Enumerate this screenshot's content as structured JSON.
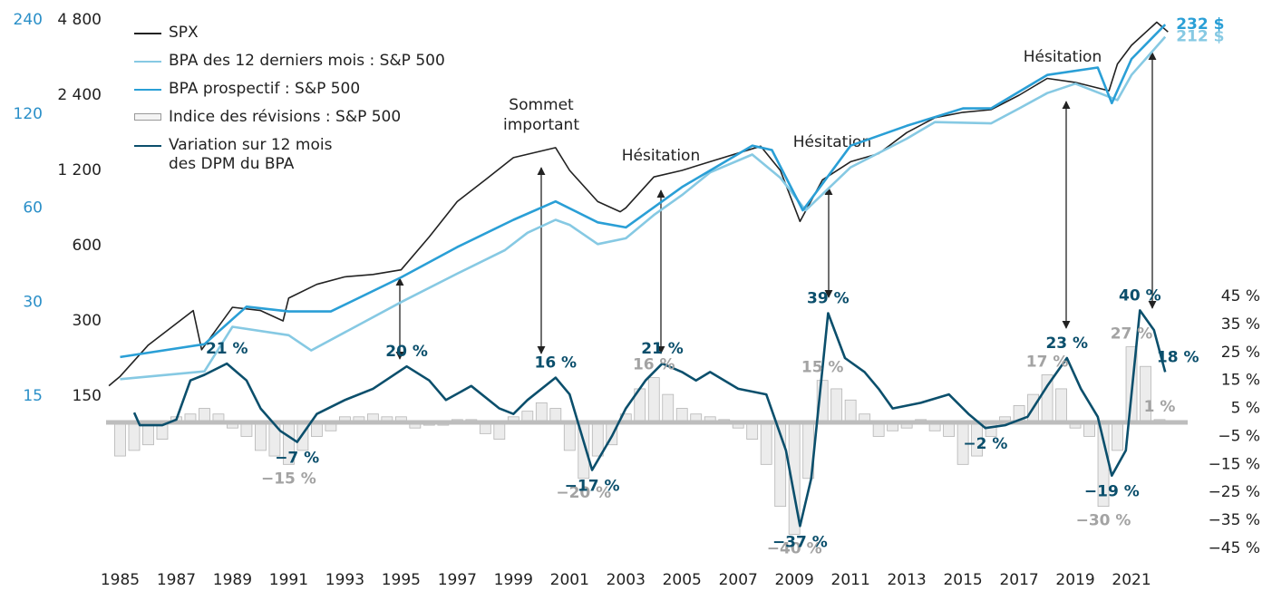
{
  "chart_data": {
    "type": "line",
    "x_axis": {
      "xlim": [
        1984.5,
        2023
      ],
      "xticks": [
        1985,
        1987,
        1989,
        1991,
        1993,
        1995,
        1997,
        1999,
        2001,
        2003,
        2005,
        2007,
        2009,
        2011,
        2013,
        2015,
        2017,
        2019,
        2021
      ]
    },
    "yscale": "log",
    "ylim": [
      150,
      4800
    ],
    "yticks": [
      150,
      300,
      600,
      {
        "value": 1200,
        "label": "1 200"
      },
      {
        "value": 2400,
        "label": "2 400"
      },
      {
        "value": 4800,
        "label": "4 800"
      }
    ],
    "y2scale": "log",
    "y2lim": [
      15,
      240
    ],
    "y2ticks": [
      15,
      30,
      60,
      120,
      240
    ],
    "y3lim": [
      -45,
      45
    ],
    "y3ticks": [
      {
        "value": 45,
        "label": "45 %"
      },
      {
        "value": 35,
        "label": "35 %"
      },
      {
        "value": 25,
        "label": "25 %"
      },
      {
        "value": 15,
        "label": "15 %"
      },
      {
        "value": 5,
        "label": "5 %"
      },
      {
        "value": -5,
        "label": "−5 %"
      },
      {
        "value": -15,
        "label": "−15 %"
      },
      {
        "value": -25,
        "label": "−25 %"
      },
      {
        "value": -35,
        "label": "−35 %"
      },
      {
        "value": -45,
        "label": "−45 %"
      }
    ],
    "series": [
      {
        "name": "SPX",
        "color": "#222222",
        "axis": "y",
        "x": [
          1984.6,
          1985,
          1986,
          1987.6,
          1987.9,
          1989,
          1990,
          1990.8,
          1991,
          1992,
          1993,
          1994,
          1995,
          1996,
          1997,
          1998,
          1999,
          2000.5,
          2001,
          2002,
          2002.8,
          2003,
          2004,
          2005,
          2006,
          2007.8,
          2008.5,
          2009.2,
          2010,
          2011,
          2012,
          2013,
          2014,
          2015,
          2016,
          2017,
          2018,
          2019,
          2020.2,
          2020.5,
          2021,
          2021.9,
          2022.3
        ],
        "values": [
          165,
          180,
          240,
          330,
          230,
          340,
          330,
          300,
          370,
          420,
          450,
          460,
          480,
          650,
          900,
          1100,
          1350,
          1480,
          1200,
          900,
          820,
          850,
          1130,
          1200,
          1300,
          1500,
          1200,
          750,
          1100,
          1300,
          1400,
          1700,
          1950,
          2050,
          2100,
          2400,
          2800,
          2700,
          2500,
          3200,
          3800,
          4700,
          4300
        ]
      },
      {
        "name": "BPA des 12 derniers mois : S&P 500",
        "color": "#86c9e3",
        "axis": "y2",
        "x": [
          1985,
          1988,
          1989,
          1991,
          1991.8,
          1995,
          1997,
          1998.7,
          1999.5,
          2000.5,
          2001,
          2002,
          2003,
          2004,
          2005,
          2006,
          2007.5,
          2008.5,
          2009.4,
          2011,
          2013,
          2014,
          2016,
          2017,
          2018,
          2019,
          2020.5,
          2021,
          2022.2
        ],
        "values": [
          17,
          18,
          25,
          23.5,
          21,
          30,
          37,
          44,
          50,
          55,
          53,
          46,
          48,
          57,
          66,
          78,
          89,
          75,
          59,
          81,
          100,
          113,
          112,
          125,
          140,
          150,
          133,
          160,
          212
        ],
        "value_labels": [
          null,
          null,
          null,
          null,
          null,
          null,
          null,
          null,
          null,
          null,
          null,
          null,
          null,
          null,
          null,
          null,
          null,
          null,
          null,
          null,
          null,
          null,
          null,
          null,
          null,
          null,
          null,
          null,
          "212 $"
        ]
      },
      {
        "name": "BPA prospectif : S&P 500",
        "color": "#2a9fd6",
        "axis": "y2",
        "x": [
          1985,
          1988,
          1989.5,
          1991,
          1992.5,
          1995,
          1997,
          1999,
          2000.5,
          2002,
          2003,
          2005,
          2007.5,
          2008.2,
          2009.3,
          2011,
          2013,
          2015,
          2016,
          2018,
          2019.8,
          2020.3,
          2021,
          2022.2
        ],
        "values": [
          20,
          22,
          29,
          28,
          28,
          36,
          45,
          55,
          63,
          54,
          52,
          70,
          95,
          92,
          59,
          95,
          110,
          125,
          125,
          160,
          169,
          130,
          180,
          232
        ],
        "value_labels": [
          null,
          null,
          null,
          null,
          null,
          null,
          null,
          null,
          null,
          null,
          null,
          null,
          null,
          null,
          null,
          null,
          null,
          null,
          null,
          null,
          null,
          null,
          null,
          "232 $"
        ]
      },
      {
        "name": "Indice des révisions : S&P 500",
        "color": "#b5b5b5",
        "axis": "y3",
        "kind": "bar",
        "x": [
          1985,
          1985.5,
          1986,
          1986.5,
          1987,
          1987.5,
          1988,
          1988.5,
          1989,
          1989.5,
          1990,
          1990.5,
          1991,
          1991.5,
          1992,
          1992.5,
          1993,
          1993.5,
          1994,
          1994.5,
          1995,
          1995.5,
          1996,
          1996.5,
          1997,
          1997.5,
          1998,
          1998.5,
          1999,
          1999.5,
          2000,
          2000.5,
          2001,
          2001.5,
          2002,
          2002.5,
          2003,
          2003.5,
          2004,
          2004.5,
          2005,
          2005.5,
          2006,
          2006.5,
          2007,
          2007.5,
          2008,
          2008.5,
          2009,
          2009.5,
          2010,
          2010.5,
          2011,
          2011.5,
          2012,
          2012.5,
          2013,
          2013.5,
          2014,
          2014.5,
          2015,
          2015.5,
          2016,
          2016.5,
          2017,
          2017.5,
          2018,
          2018.5,
          2019,
          2019.5,
          2020,
          2020.5,
          2021,
          2021.5,
          2022
        ],
        "values": [
          -12,
          -10,
          -8,
          -6,
          2,
          3,
          5,
          3,
          -2,
          -5,
          -10,
          -12,
          -15,
          -10,
          -5,
          -3,
          2,
          2,
          3,
          2,
          2,
          -2,
          -1,
          -1,
          1,
          1,
          -4,
          -6,
          2,
          4,
          7,
          5,
          -10,
          -20,
          -12,
          -8,
          3,
          12,
          16,
          10,
          5,
          3,
          2,
          1,
          -2,
          -6,
          -15,
          -30,
          -40,
          -20,
          15,
          12,
          8,
          3,
          -5,
          -3,
          -2,
          1,
          -3,
          -5,
          -15,
          -12,
          -5,
          2,
          6,
          10,
          17,
          12,
          -2,
          -5,
          -30,
          -10,
          27,
          20,
          1
        ],
        "value_labels": [
          null,
          null,
          null,
          null,
          null,
          null,
          null,
          null,
          null,
          null,
          null,
          null,
          "−15 %",
          null,
          null,
          null,
          null,
          null,
          null,
          null,
          null,
          null,
          null,
          null,
          null,
          null,
          null,
          null,
          null,
          null,
          null,
          null,
          null,
          "−20 %",
          null,
          null,
          null,
          null,
          "16 %",
          null,
          null,
          null,
          null,
          null,
          null,
          null,
          null,
          null,
          "−40 %",
          null,
          "15 %",
          null,
          null,
          null,
          null,
          null,
          null,
          null,
          null,
          null,
          null,
          null,
          null,
          null,
          null,
          null,
          "17 %",
          null,
          null,
          null,
          "−30 %",
          null,
          "27 %",
          null,
          "1 %"
        ]
      },
      {
        "name": "Variation sur 12 mois des DPM du BPA",
        "color": "#0b4f6c",
        "axis": "y3",
        "x": [
          1985.5,
          1985.7,
          1986.5,
          1987,
          1987.5,
          1988,
          1988.8,
          1989.5,
          1990,
          1990.7,
          1991.3,
          1992,
          1993,
          1994,
          1995.2,
          1996,
          1996.6,
          1997.5,
          1998.5,
          1999,
          1999.5,
          2000.5,
          2001,
          2001.8,
          2002.5,
          2003,
          2003.7,
          2004.3,
          2005,
          2005.5,
          2006,
          2007,
          2008,
          2008.7,
          2009.2,
          2009.6,
          2010.2,
          2010.8,
          2011.5,
          2012,
          2012.5,
          2013.5,
          2014.5,
          2015.2,
          2015.8,
          2016.5,
          2017.3,
          2018,
          2018.7,
          2019.2,
          2019.8,
          2020.3,
          2020.8,
          2021.3,
          2021.8,
          2022.2
        ],
        "values": [
          3.5,
          -1,
          -1,
          1,
          15,
          17,
          21,
          15,
          5,
          -3,
          -7,
          3,
          8,
          12,
          20,
          15,
          8,
          13,
          5,
          3,
          8,
          16,
          10,
          -17,
          -5,
          5,
          15,
          21,
          18,
          15,
          18,
          12,
          10,
          -10,
          -37,
          -20,
          39,
          23,
          18,
          12,
          5,
          7,
          10,
          3,
          -2,
          -1,
          2,
          13,
          23,
          12,
          2,
          -19,
          -10,
          40,
          33,
          18
        ],
        "value_labels": [
          null,
          null,
          null,
          null,
          null,
          null,
          "21 %",
          null,
          null,
          null,
          "−7 %",
          null,
          null,
          null,
          "20 %",
          null,
          null,
          null,
          null,
          null,
          null,
          "16 %",
          null,
          "−17 %",
          null,
          null,
          null,
          "21 %",
          null,
          null,
          null,
          null,
          null,
          null,
          "−37 %",
          null,
          "39 %",
          null,
          null,
          null,
          null,
          null,
          null,
          null,
          "−2 %",
          null,
          null,
          null,
          "23 %",
          null,
          null,
          "−19 %",
          null,
          "40 %",
          null,
          "18 %"
        ]
      }
    ],
    "annotations": [
      {
        "lines": [
          "Sommet",
          "important"
        ]
      },
      {
        "lines": [
          "Hésitation"
        ]
      },
      {
        "lines": [
          "Hésitation"
        ]
      },
      {
        "lines": [
          "Hésitation"
        ]
      }
    ]
  }
}
